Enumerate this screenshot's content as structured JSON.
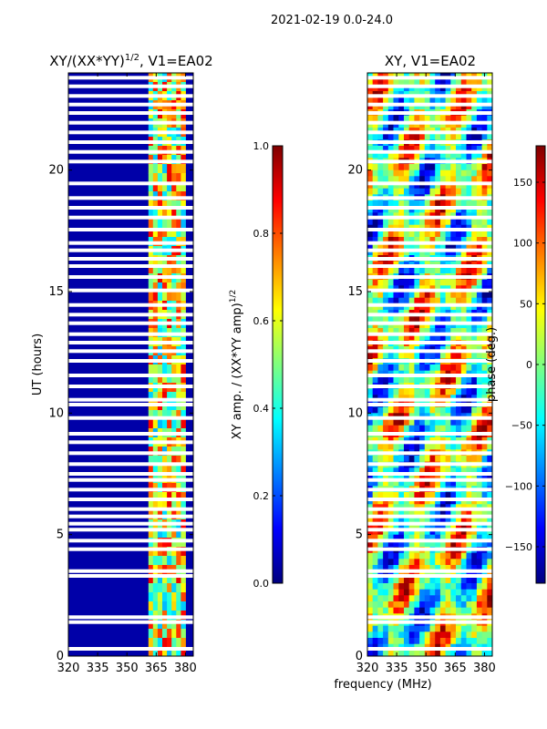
{
  "figure": {
    "suptitle": "2021-02-19 0.0-24.0",
    "xlabel": "frequency (MHz)"
  },
  "chart_data": [
    {
      "type": "heatmap",
      "title": "XY/(XX*YY)",
      "title_exponent": "1/2",
      "title_suffix": ", V1=EA02",
      "xlabel": "",
      "ylabel": "UT (hours)",
      "xlim": [
        320,
        384
      ],
      "ylim": [
        0,
        24
      ],
      "x_ticks": [
        "320",
        "335",
        "350",
        "365",
        "380"
      ],
      "y_ticks": [
        "0",
        "5",
        "10",
        "15",
        "20"
      ],
      "x_tick_values": [
        320,
        335,
        350,
        365,
        380
      ],
      "y_tick_values": [
        0,
        5,
        10,
        15,
        20
      ],
      "colormap": "jet",
      "colorbar": {
        "label": "XY amp. / (XX*YY amp)",
        "label_exponent": "1/2",
        "range": [
          0.0,
          1.0
        ],
        "ticks": [
          "0.0",
          "0.2",
          "0.4",
          "0.6",
          "0.8",
          "1.0"
        ],
        "tick_values": [
          0.0,
          0.2,
          0.4,
          0.6,
          0.8,
          1.0
        ]
      },
      "band_structure": {
        "low_band_mhz": [
          320,
          361
        ],
        "low_band_value": 0.04,
        "high_band_mhz": [
          361,
          380
        ],
        "high_band_range": [
          0.3,
          0.9
        ]
      }
    },
    {
      "type": "heatmap",
      "title": "XY, V1=EA02",
      "xlabel": "frequency (MHz)",
      "ylabel": "",
      "xlim": [
        320,
        384
      ],
      "ylim": [
        0,
        24
      ],
      "x_ticks": [
        "320",
        "335",
        "350",
        "365",
        "380"
      ],
      "y_ticks": [
        "0",
        "5",
        "10",
        "15",
        "20"
      ],
      "x_tick_values": [
        320,
        335,
        350,
        365,
        380
      ],
      "y_tick_values": [
        0,
        5,
        10,
        15,
        20
      ],
      "colormap": "jet",
      "colorbar": {
        "label": "phase (deg.)",
        "range": [
          -180,
          180
        ],
        "ticks": [
          "150",
          "100",
          "50",
          "0",
          "−50",
          "−100",
          "−150"
        ],
        "tick_values": [
          150,
          100,
          50,
          0,
          -50,
          -100,
          -150
        ]
      }
    }
  ],
  "flagged_utc_hours": [
    0.3,
    1.4,
    1.6,
    3.3,
    3.5,
    4.4,
    4.75,
    5.2,
    5.45,
    5.75,
    6.05,
    6.45,
    6.85,
    7.25,
    7.5,
    7.9,
    8.35,
    8.8,
    9.15,
    9.8,
    10.35,
    10.55,
    11.1,
    11.55,
    12.15,
    12.55,
    12.9,
    13.25,
    13.7,
    14.05,
    14.45,
    15.05,
    15.6,
    16.05,
    16.35,
    16.7,
    17.0,
    17.55,
    18.05,
    18.45,
    18.85,
    19.45,
    20.35,
    20.75,
    21.15,
    21.55,
    21.95,
    22.35,
    22.7,
    23.05,
    23.45,
    23.8
  ]
}
